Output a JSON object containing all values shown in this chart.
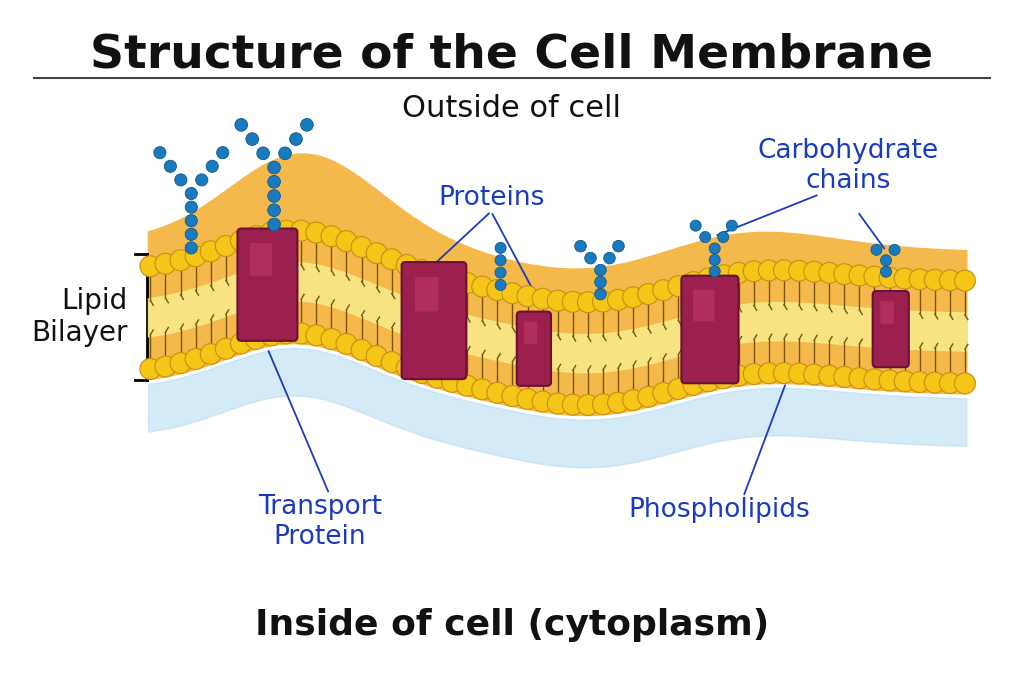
{
  "title": "Structure of the Cell Membrane",
  "title_fontsize": 34,
  "title_fontweight": "bold",
  "outside_label": "Outside of cell",
  "outside_fontsize": 22,
  "inside_label": "Inside of cell (cytoplasm)",
  "inside_fontsize": 26,
  "inside_fontweight": "bold",
  "lipid_bilayer_label": "Lipid\nBilayer",
  "lipid_bilayer_fontsize": 20,
  "proteins_label": "Proteins",
  "proteins_fontsize": 19,
  "transport_label": "Transport\nProtein",
  "transport_fontsize": 19,
  "phospholipids_label": "Phospholipids",
  "phospholipids_fontsize": 19,
  "carbohydrate_label": "Carbohydrate\nchains",
  "carbohydrate_fontsize": 19,
  "bg_color": "#ffffff",
  "label_color": "#1a3bbf",
  "black_label_color": "#111111",
  "orange_surface": "#f5a020",
  "orange_bg": "#f5b84a",
  "yellow_inner": "#f8d840",
  "head_color": "#f5c518",
  "head_edge": "#c89010",
  "tail_color": "#7a5500",
  "protein_color": "#9b2050",
  "protein_edge": "#6b1035",
  "protein_highlight": "#c84070",
  "carb_color": "#1a7abf",
  "carb_edge": "#0d5a8a",
  "shadow_color": "#b8ddf0"
}
